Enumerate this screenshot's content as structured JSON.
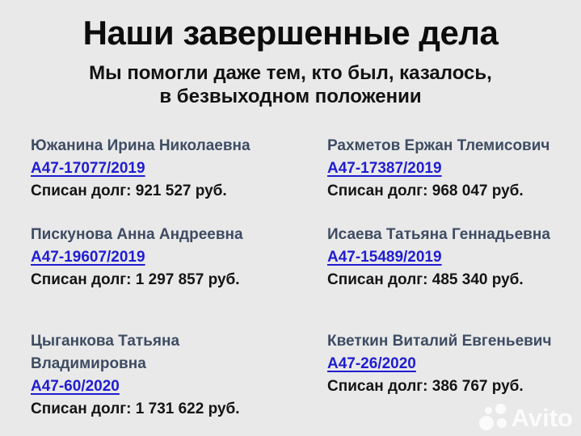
{
  "header": {
    "title": "Наши завершенные дела",
    "subtitle_line1": "Мы помогли даже тем, кто был, казалось,",
    "subtitle_line2": "в безвыходном положении"
  },
  "cases": [
    {
      "name": "Южанина Ирина Николаевна",
      "case_number": "А47-17077/2019",
      "debt_line": "Списан долг: 921 527 руб."
    },
    {
      "name": "Рахметов Ержан Тлемисович",
      "case_number": "А47-17387/2019",
      "debt_line": "Списан долг: 968 047 руб."
    },
    {
      "name": "Пискунова Анна Андреевна",
      "case_number": "А47-19607/2019",
      "debt_line": "Списан долг: 1 297 857 руб."
    },
    {
      "name": "Исаева Татьяна Геннадьевна",
      "case_number": "А47-15489/2019",
      "debt_line": "Списан долг: 485 340 руб."
    },
    {
      "name": "Цыганкова Татьяна Владимировна",
      "case_number": "А47-60/2020",
      "debt_line": "Списан долг: 1 731 622 руб."
    },
    {
      "name": "Кветкин Виталий Евгеньевич",
      "case_number": "А47-26/2020",
      "debt_line": "Списан долг: 386 767 руб."
    }
  ],
  "watermark": {
    "label": "Avito"
  },
  "colors": {
    "background": "#e9e9e9",
    "title_text": "#0c0c0c",
    "client_name": "#3e4c63",
    "case_link": "#201dd1",
    "debt_text": "#141414"
  }
}
